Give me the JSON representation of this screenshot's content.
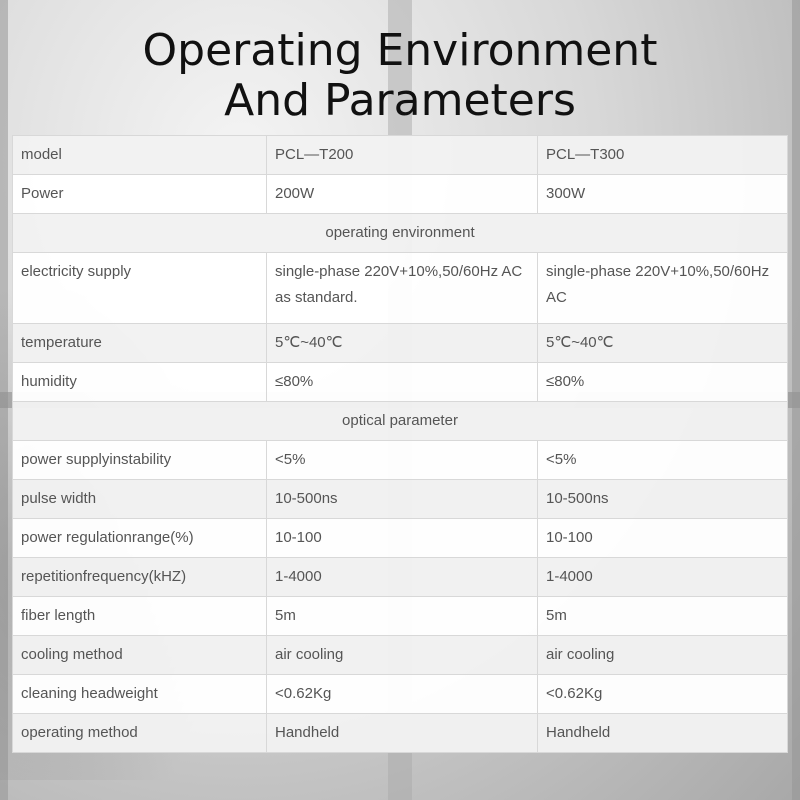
{
  "title": {
    "line1": "Operating Environment",
    "line2": "And Parameters"
  },
  "table": {
    "rows": [
      {
        "label": "model",
        "t200": "PCL—T200",
        "t300": "PCL—T300"
      },
      {
        "label": "Power",
        "t200": "200W",
        "t300": "300W"
      },
      {
        "section": "operating environment"
      },
      {
        "label": "electricity supply",
        "t200": "single-phase 220V+10%,50/60Hz AC as standard.",
        "t300": "single-phase 220V+10%,50/60Hz AC"
      },
      {
        "label": "temperature",
        "t200": "5℃~40℃",
        "t300": "5℃~40℃"
      },
      {
        "label": "humidity",
        "t200": "≤80%",
        "t300": "≤80%"
      },
      {
        "section": "optical parameter"
      },
      {
        "label": "power supplyinstability",
        "t200": "<5%",
        "t300": "<5%"
      },
      {
        "label": "pulse width",
        "t200": "10-500ns",
        "t300": "10-500ns"
      },
      {
        "label": "power regulationrange(%)",
        "t200": "10-100",
        "t300": "10-100"
      },
      {
        "label": "repetitionfrequency(kHZ)",
        "t200": "1-4000",
        "t300": "1-4000"
      },
      {
        "label": "fiber length",
        "t200": "5m",
        "t300": "5m"
      },
      {
        "label": "cooling method",
        "t200": "air cooling",
        "t300": "air cooling"
      },
      {
        "label": "cleaning headweight",
        "t200": "<0.62Kg",
        "t300": "<0.62Kg"
      },
      {
        "label": "operating method",
        "t200": "Handheld",
        "t300": "Handheld"
      }
    ]
  }
}
